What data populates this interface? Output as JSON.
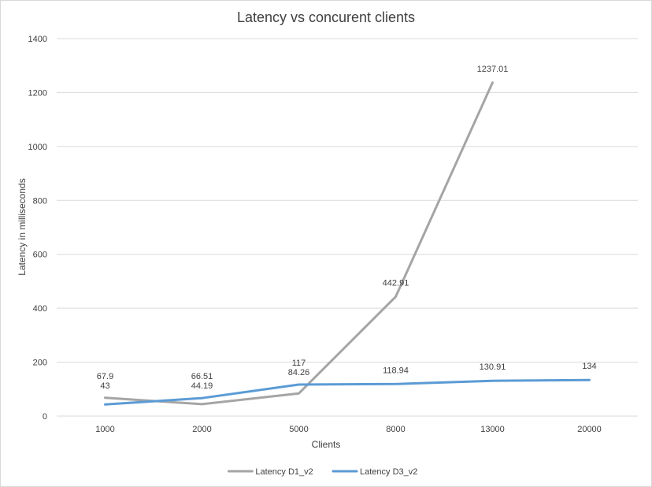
{
  "chart_data": {
    "type": "line",
    "title": "Latency vs concurent clients",
    "xlabel": "Clients",
    "ylabel": "Latency in milliseconds",
    "categories": [
      "1000",
      "2000",
      "5000",
      "8000",
      "13000",
      "20000"
    ],
    "ylim": [
      0,
      1400
    ],
    "yticks": [
      0,
      200,
      400,
      600,
      800,
      1000,
      1200,
      1400
    ],
    "grid": true,
    "legend_position": "bottom",
    "series": [
      {
        "name": "Latency D1_v2",
        "color": "#a5a5a5",
        "values": [
          67.9,
          44.19,
          84.26,
          442.91,
          1237.01,
          null
        ],
        "labels": [
          "67.9",
          "44.19",
          "84.26",
          "442.91",
          "1237.01",
          ""
        ]
      },
      {
        "name": "Latency D3_v2",
        "color": "#5b9bd5",
        "values": [
          43,
          66.51,
          117,
          118.94,
          130.91,
          134
        ],
        "labels": [
          "43",
          "66.51",
          "117",
          "118.94",
          "130.91",
          "134"
        ]
      }
    ]
  }
}
